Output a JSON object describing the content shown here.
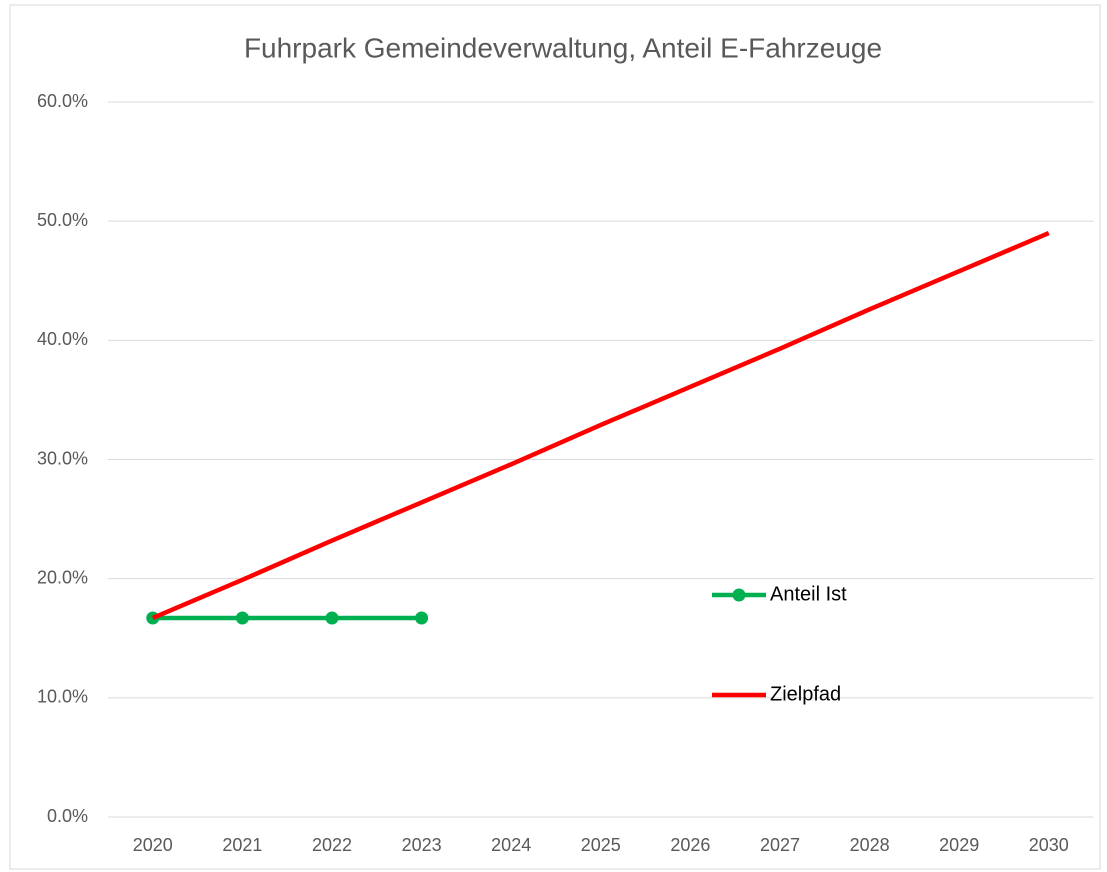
{
  "chart_data": {
    "type": "line",
    "title": "Fuhrpark Gemeindeverwaltung, Anteil E-Fahrzeuge",
    "categories": [
      "2020",
      "2021",
      "2022",
      "2023",
      "2024",
      "2025",
      "2026",
      "2027",
      "2028",
      "2029",
      "2030"
    ],
    "series": [
      {
        "name": "Anteil Ist",
        "color": "#00b050",
        "marker": "circle",
        "values": [
          16.7,
          16.7,
          16.7,
          16.7,
          null,
          null,
          null,
          null,
          null,
          null,
          null
        ]
      },
      {
        "name": "Zielpfad",
        "color": "#ff0000",
        "values": [
          16.7,
          19.9,
          23.2,
          26.4,
          29.6,
          32.9,
          36.1,
          39.3,
          42.6,
          45.8,
          49.0
        ]
      }
    ],
    "ylim": [
      0,
      60
    ],
    "yticks": [
      {
        "value": 0,
        "label": "0.0%"
      },
      {
        "value": 10,
        "label": "10.0%"
      },
      {
        "value": 20,
        "label": "20.0%"
      },
      {
        "value": 30,
        "label": "30.0%"
      },
      {
        "value": 40,
        "label": "40.0%"
      },
      {
        "value": 50,
        "label": "50.0%"
      },
      {
        "value": 60,
        "label": "60.0%"
      }
    ],
    "grid": true,
    "legend": "right"
  }
}
